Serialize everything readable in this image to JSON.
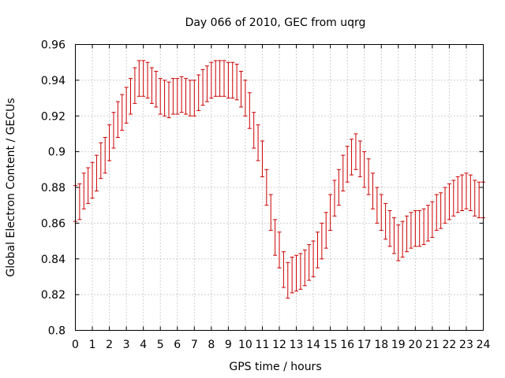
{
  "chart_data": {
    "type": "scatter",
    "title": "Day 066 of 2010, GEC from uqrg",
    "xlabel": "GPS time / hours",
    "ylabel": "Global Electron Content / GECUs",
    "xlim": [
      0,
      24
    ],
    "ylim": [
      0.8,
      0.96
    ],
    "x_ticks": [
      "0",
      "1",
      "2",
      "3",
      "4",
      "5",
      "6",
      "7",
      "8",
      "9",
      "10",
      "11",
      "12",
      "13",
      "14",
      "15",
      "16",
      "17",
      "18",
      "19",
      "20",
      "21",
      "22",
      "23",
      "24"
    ],
    "y_ticks": [
      "0.8",
      "0.82",
      "0.84",
      "0.86",
      "0.88",
      "0.9",
      "0.92",
      "0.94",
      "0.96"
    ],
    "grid": true,
    "error_bar_color": "#cc0000",
    "series": [
      {
        "error_half_width": 0.01,
        "x": [
          0,
          0.25,
          0.5,
          0.75,
          1,
          1.25,
          1.5,
          1.75,
          2,
          2.25,
          2.5,
          2.75,
          3,
          3.25,
          3.5,
          3.75,
          4,
          4.25,
          4.5,
          4.75,
          5,
          5.25,
          5.5,
          5.75,
          6,
          6.25,
          6.5,
          6.75,
          7,
          7.25,
          7.5,
          7.75,
          8,
          8.25,
          8.5,
          8.75,
          9,
          9.25,
          9.5,
          9.75,
          10,
          10.25,
          10.5,
          10.75,
          11,
          11.25,
          11.5,
          11.75,
          12,
          12.25,
          12.5,
          12.75,
          13,
          13.25,
          13.5,
          13.75,
          14,
          14.25,
          14.5,
          14.75,
          15,
          15.25,
          15.5,
          15.75,
          16,
          16.25,
          16.5,
          16.75,
          17,
          17.25,
          17.5,
          17.75,
          18,
          18.25,
          18.5,
          18.75,
          19,
          19.25,
          19.5,
          19.75,
          20,
          20.25,
          20.5,
          20.75,
          21,
          21.25,
          21.5,
          21.75,
          22,
          22.25,
          22.5,
          22.75,
          23,
          23.25,
          23.5,
          23.75,
          24
        ],
        "y": [
          0.871,
          0.872,
          0.878,
          0.881,
          0.884,
          0.888,
          0.895,
          0.898,
          0.905,
          0.912,
          0.918,
          0.922,
          0.926,
          0.931,
          0.937,
          0.941,
          0.941,
          0.94,
          0.937,
          0.935,
          0.931,
          0.93,
          0.929,
          0.931,
          0.931,
          0.932,
          0.931,
          0.93,
          0.93,
          0.933,
          0.936,
          0.938,
          0.94,
          0.941,
          0.941,
          0.941,
          0.94,
          0.94,
          0.939,
          0.935,
          0.93,
          0.923,
          0.912,
          0.905,
          0.896,
          0.88,
          0.866,
          0.852,
          0.845,
          0.834,
          0.828,
          0.831,
          0.832,
          0.833,
          0.835,
          0.838,
          0.84,
          0.845,
          0.85,
          0.856,
          0.866,
          0.874,
          0.88,
          0.888,
          0.893,
          0.897,
          0.9,
          0.896,
          0.89,
          0.886,
          0.878,
          0.87,
          0.866,
          0.861,
          0.857,
          0.853,
          0.849,
          0.851,
          0.854,
          0.856,
          0.857,
          0.857,
          0.858,
          0.86,
          0.862,
          0.866,
          0.867,
          0.87,
          0.872,
          0.874,
          0.876,
          0.877,
          0.878,
          0.877,
          0.874,
          0.873,
          0.873
        ]
      }
    ]
  }
}
